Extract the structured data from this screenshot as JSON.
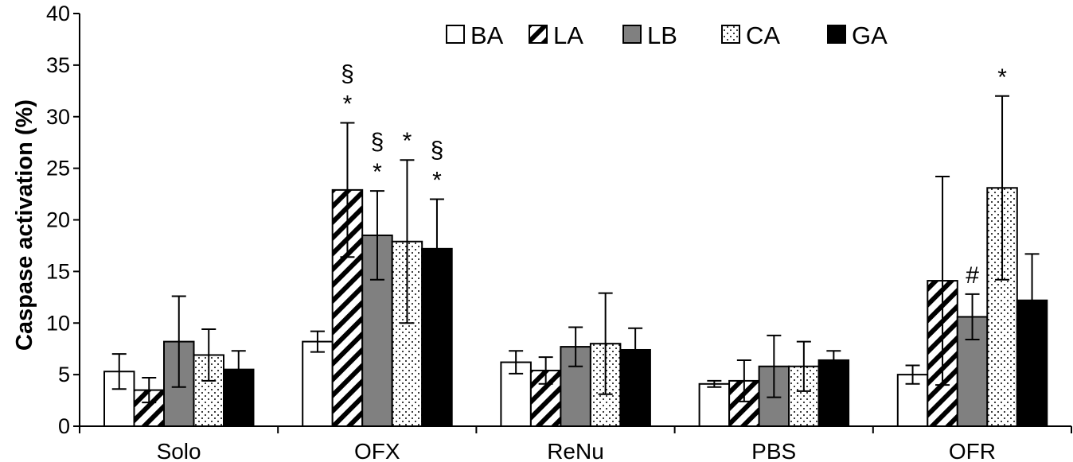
{
  "chart_data": {
    "type": "bar",
    "ylabel": "Caspase activation (%)",
    "xlabel": "",
    "ylim": [
      0,
      40
    ],
    "yticks": [
      0,
      5,
      10,
      15,
      20,
      25,
      30,
      35,
      40
    ],
    "categories": [
      "Solo",
      "OFX",
      "ReNu",
      "PBS",
      "OFR"
    ],
    "legend_position": "top-right",
    "series": [
      {
        "name": "BA",
        "pattern": "white",
        "values": [
          5.3,
          8.2,
          6.2,
          4.1,
          5.0
        ],
        "errors": [
          1.7,
          1.0,
          1.1,
          0.3,
          0.9
        ]
      },
      {
        "name": "LA",
        "pattern": "diagonal-hatch",
        "values": [
          3.5,
          22.9,
          5.4,
          4.4,
          14.1
        ],
        "errors": [
          1.2,
          6.5,
          1.3,
          2.0,
          10.1
        ]
      },
      {
        "name": "LB",
        "pattern": "gray",
        "values": [
          8.2,
          18.5,
          7.7,
          5.8,
          10.6
        ],
        "errors": [
          4.4,
          4.3,
          1.9,
          3.0,
          2.2
        ]
      },
      {
        "name": "CA",
        "pattern": "dotted",
        "values": [
          6.9,
          17.9,
          8.0,
          5.8,
          23.1
        ],
        "errors": [
          2.5,
          7.9,
          4.9,
          2.4,
          8.9
        ]
      },
      {
        "name": "GA",
        "pattern": "black",
        "values": [
          5.5,
          17.2,
          7.4,
          6.4,
          12.2
        ],
        "errors": [
          1.8,
          4.8,
          2.1,
          0.9,
          4.5
        ]
      }
    ],
    "annotations": [
      {
        "category": "OFX",
        "series": "LA",
        "lines": [
          "§",
          "*"
        ]
      },
      {
        "category": "OFX",
        "series": "LB",
        "lines": [
          "§",
          "*"
        ]
      },
      {
        "category": "OFX",
        "series": "CA",
        "lines": [
          "*"
        ]
      },
      {
        "category": "OFX",
        "series": "GA",
        "lines": [
          "§",
          "*"
        ]
      },
      {
        "category": "OFR",
        "series": "LB",
        "lines": [
          "#"
        ]
      },
      {
        "category": "OFR",
        "series": "CA",
        "lines": [
          "*"
        ]
      }
    ]
  }
}
